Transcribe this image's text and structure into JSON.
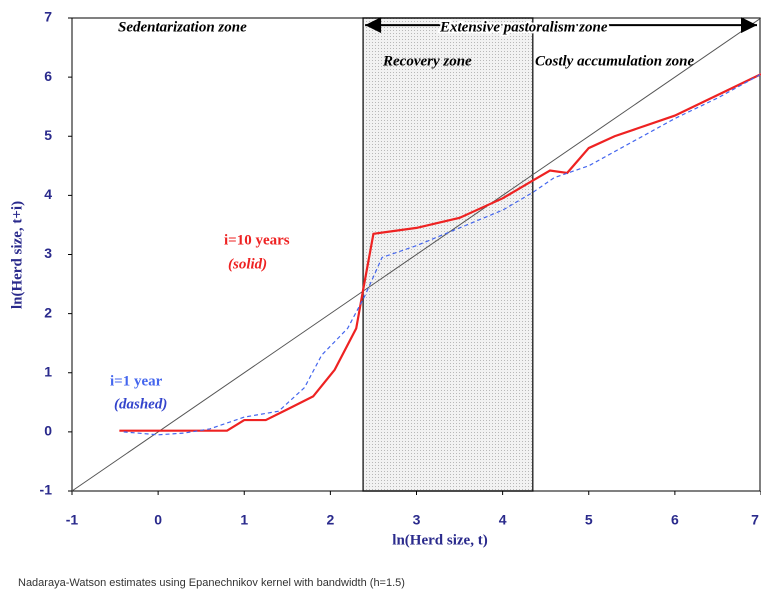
{
  "chart_data": {
    "type": "line",
    "x_label": "ln(Herd size, t)",
    "y_label": "ln(Herd size, t+i)",
    "caption": "Nadaraya-Watson estimates using Epanechnikov kernel with bandwidth (h=1.5)",
    "xlim": [
      -1,
      7
    ],
    "xticks": [
      -1,
      0,
      1,
      2,
      3,
      4,
      5,
      6,
      7
    ],
    "ylim": [
      -1,
      7
    ],
    "yticks": [
      -1,
      0,
      1,
      2,
      3,
      4,
      5,
      6,
      7
    ],
    "shaded_region": [
      2.38,
      4.35
    ],
    "reference_line": {
      "x": [
        -1,
        7
      ],
      "values": [
        -1,
        7
      ],
      "color": "#555555"
    },
    "annotations": [
      "Sedentarization zone",
      "Extensive pastoralism zone",
      "Recovery zone",
      "Costly accumulation zone",
      "(solid)",
      "(dashed)"
    ],
    "series": [
      {
        "name": "i=10 years",
        "color": "#ee2222",
        "dashed": false,
        "x": [
          -0.45,
          0,
          0.4,
          0.8,
          1,
          1.25,
          1.5,
          1.8,
          2.05,
          2.3,
          2.38,
          2.5,
          3,
          3.5,
          4,
          4.35,
          4.55,
          4.75,
          5,
          5.3,
          5.6,
          6,
          6.5,
          7
        ],
        "values": [
          0.02,
          0.02,
          0.02,
          0.02,
          0.2,
          0.2,
          0.38,
          0.6,
          1.05,
          1.75,
          2.4,
          3.35,
          3.45,
          3.62,
          3.95,
          4.25,
          4.42,
          4.38,
          4.8,
          5.0,
          5.15,
          5.35,
          5.7,
          6.05
        ]
      },
      {
        "name": "i=1 year",
        "color": "#4466ee",
        "dashed": true,
        "x": [
          -0.4,
          0,
          0.3,
          0.6,
          1,
          1.4,
          1.7,
          1.9,
          2.2,
          2.4,
          2.6,
          3,
          3.5,
          4,
          4.35,
          4.6,
          5,
          5.5,
          6,
          6.5,
          7
        ],
        "values": [
          0,
          -0.05,
          -0.02,
          0.05,
          0.25,
          0.35,
          0.75,
          1.3,
          1.75,
          2.3,
          2.95,
          3.15,
          3.45,
          3.75,
          4.05,
          4.3,
          4.5,
          4.9,
          5.3,
          5.65,
          6.05
        ]
      }
    ]
  }
}
